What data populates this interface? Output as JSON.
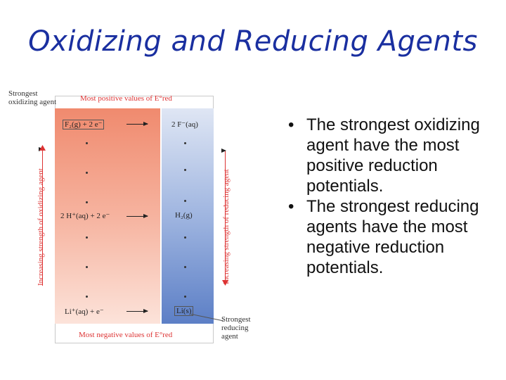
{
  "slide": {
    "title": "Oxidizing and Reducing Agents"
  },
  "figure": {
    "top_left_label": "Strongest oxidizing agent",
    "top_header": "Most positive values of E°red",
    "bottom_header": "Most negative values of E°red",
    "bottom_right_label": "Strongest reducing agent",
    "left_axis": "Increasing strength of oxidizing agent",
    "right_axis": "Increasing strength of reducing agent",
    "rows": [
      {
        "left": "F₂(g) + 2 e⁻",
        "right": "2 F⁻(aq)"
      },
      {
        "left": "2 H⁺(aq) + 2 e⁻",
        "right": "H₂(g)"
      },
      {
        "left": "Li⁺(aq) + e⁻",
        "right": "Li(s)"
      }
    ]
  },
  "bullets": [
    {
      "marker": "•",
      "text": "The strongest oxidizing agent have the most positive reduction potentials."
    },
    {
      "marker": "•",
      "text": "The strongest reducing agents have the most negative reduction potentials."
    }
  ],
  "colors": {
    "title": "#1a2fa0",
    "accent_red": "#dd3333"
  }
}
